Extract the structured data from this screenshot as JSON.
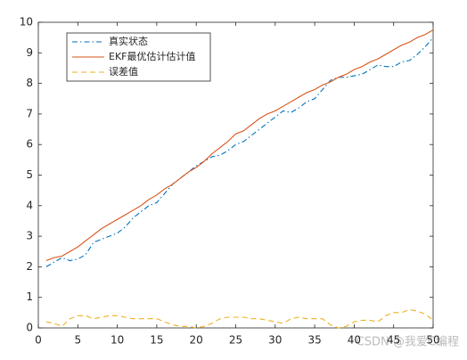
{
  "chart_data": {
    "type": "line",
    "x": [
      1,
      2,
      3,
      4,
      5,
      6,
      7,
      8,
      9,
      10,
      11,
      12,
      13,
      14,
      15,
      16,
      17,
      18,
      19,
      20,
      21,
      22,
      23,
      24,
      25,
      26,
      27,
      28,
      29,
      30,
      31,
      32,
      33,
      34,
      35,
      36,
      37,
      38,
      39,
      40,
      41,
      42,
      43,
      44,
      45,
      46,
      47,
      48,
      49,
      50
    ],
    "series": [
      {
        "name": "真实状态",
        "color": "#0072bd",
        "dash": "dashdot",
        "values": [
          2.0,
          2.15,
          2.3,
          2.2,
          2.25,
          2.4,
          2.8,
          2.9,
          3.0,
          3.1,
          3.3,
          3.6,
          3.8,
          4.0,
          4.1,
          4.4,
          4.7,
          4.9,
          5.1,
          5.3,
          5.45,
          5.6,
          5.65,
          5.8,
          6.0,
          6.1,
          6.3,
          6.5,
          6.7,
          6.9,
          7.1,
          7.05,
          7.2,
          7.4,
          7.5,
          7.8,
          8.1,
          8.2,
          8.2,
          8.25,
          8.3,
          8.45,
          8.6,
          8.55,
          8.55,
          8.7,
          8.75,
          8.95,
          9.2,
          9.5
        ]
      },
      {
        "name": "EKF最优估计估计值",
        "color": "#d95319",
        "dash": "solid",
        "values": [
          2.2,
          2.3,
          2.35,
          2.5,
          2.65,
          2.85,
          3.05,
          3.25,
          3.4,
          3.55,
          3.7,
          3.85,
          4.0,
          4.2,
          4.35,
          4.55,
          4.7,
          4.9,
          5.1,
          5.25,
          5.45,
          5.7,
          5.9,
          6.1,
          6.35,
          6.45,
          6.65,
          6.85,
          7.0,
          7.1,
          7.25,
          7.4,
          7.55,
          7.7,
          7.8,
          7.95,
          8.05,
          8.2,
          8.3,
          8.45,
          8.55,
          8.7,
          8.8,
          8.95,
          9.1,
          9.25,
          9.35,
          9.5,
          9.6,
          9.75
        ]
      },
      {
        "name": "误差值",
        "color": "#edb120",
        "dash": "dashed",
        "values": [
          0.2,
          0.15,
          0.05,
          0.3,
          0.4,
          0.4,
          0.3,
          0.35,
          0.4,
          0.4,
          0.35,
          0.3,
          0.3,
          0.3,
          0.3,
          0.2,
          0.1,
          0.05,
          0.05,
          0.0,
          0.05,
          0.15,
          0.3,
          0.35,
          0.35,
          0.35,
          0.3,
          0.3,
          0.25,
          0.2,
          0.15,
          0.3,
          0.35,
          0.3,
          0.3,
          0.3,
          0.1,
          0.0,
          0.05,
          0.2,
          0.25,
          0.25,
          0.2,
          0.4,
          0.5,
          0.5,
          0.6,
          0.55,
          0.45,
          0.25
        ]
      }
    ],
    "xlim": [
      0,
      50
    ],
    "xticks": [
      0,
      5,
      10,
      15,
      20,
      25,
      30,
      35,
      40,
      45,
      50
    ],
    "ylim": [
      0,
      10
    ],
    "yticks": [
      0,
      1,
      2,
      3,
      4,
      5,
      6,
      7,
      8,
      9,
      10
    ],
    "legend": "upper left",
    "watermark": "CSDN @我爱C编程"
  }
}
